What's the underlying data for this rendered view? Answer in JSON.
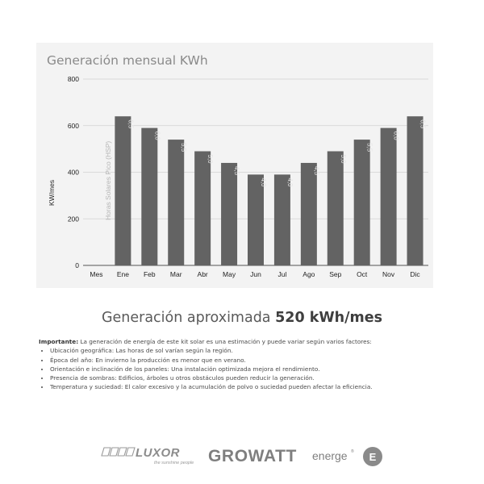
{
  "chart_data": {
    "type": "bar",
    "title": "Generación mensual KWh",
    "ylabel": "KW/mes",
    "secondary_label": "Horas Solares Pico (HSP)",
    "categories": [
      "Mes",
      "Ene",
      "Feb",
      "Mar",
      "Abr",
      "May",
      "Jun",
      "Jul",
      "Ago",
      "Sep",
      "Oct",
      "Nov",
      "Dic"
    ],
    "values": [
      null,
      640,
      590,
      540,
      490,
      440,
      390,
      390,
      440,
      490,
      540,
      590,
      640
    ],
    "hsp_labels": [
      "",
      "6,5",
      "6,0",
      "5,5",
      "5,0",
      "4,5",
      "4,0",
      "4,0",
      "4,5",
      "5,0",
      "5,5",
      "6,0",
      "6,5"
    ],
    "ylim": [
      0,
      800
    ],
    "yticks": [
      0,
      200,
      400,
      600,
      800
    ],
    "grid": true,
    "legend": "none",
    "bar_color": "#636363",
    "panel_color": "#f3f3f3"
  },
  "headline": {
    "prefix": "Generación aproximada ",
    "value": "520 kWh/mes"
  },
  "notes": {
    "lead_bold": "Importante:",
    "lead_text": " La generación de energía de este kit solar es una estimación y puede variar según varios factores:",
    "items": [
      "Ubicación geográfica: Las horas de sol varían según la región.",
      "Época del año: En invierno la producción es menor que en verano.",
      "Orientación e inclinación de los paneles: Una instalación optimizada mejora el rendimiento.",
      "Presencia de sombras: Edificios, árboles u otros obstáculos pueden reducir la generación.",
      "Temperatura y suciedad: El calor excesivo y la acumulación de polvo o suciedad pueden afectar la eficiencia."
    ]
  },
  "logos": {
    "luxor": "LUXOR",
    "luxor_tagline": "the sunshine people",
    "growatt": "GROWATT",
    "energe": "energe",
    "energe_mark": "E",
    "energe_reg": "®"
  }
}
